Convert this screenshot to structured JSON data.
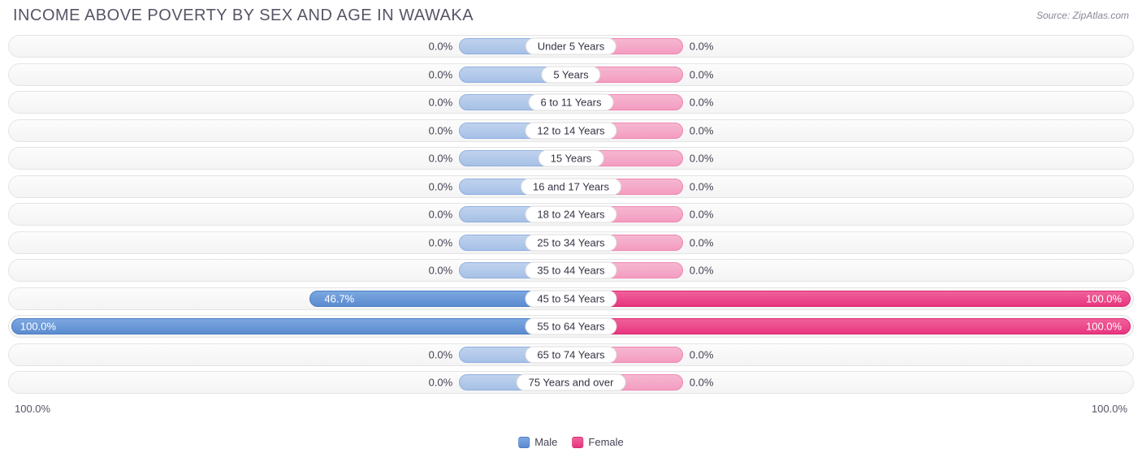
{
  "header": {
    "title": "INCOME ABOVE POVERTY BY SEX AND AGE IN WAWAKA",
    "source": "Source: ZipAtlas.com"
  },
  "chart": {
    "type": "diverging-bar",
    "track_bg_top": "#fcfcfc",
    "track_bg_bottom": "#f4f4f4",
    "track_border": "#e4e4e4",
    "male_full_color": "#5b8bd0",
    "male_faded_color": "#a6c0e6",
    "female_full_color": "#e8357e",
    "female_faded_color": "#f39dc1",
    "label_bg": "#ffffff",
    "label_border": "#dddddd",
    "text_color": "#444455",
    "min_bar_pct": 20,
    "axis": {
      "left": "100.0%",
      "right": "100.0%"
    },
    "rows": [
      {
        "category": "Under 5 Years",
        "male_pct": 0.0,
        "male_label": "0.0%",
        "female_pct": 0.0,
        "female_label": "0.0%"
      },
      {
        "category": "5 Years",
        "male_pct": 0.0,
        "male_label": "0.0%",
        "female_pct": 0.0,
        "female_label": "0.0%"
      },
      {
        "category": "6 to 11 Years",
        "male_pct": 0.0,
        "male_label": "0.0%",
        "female_pct": 0.0,
        "female_label": "0.0%"
      },
      {
        "category": "12 to 14 Years",
        "male_pct": 0.0,
        "male_label": "0.0%",
        "female_pct": 0.0,
        "female_label": "0.0%"
      },
      {
        "category": "15 Years",
        "male_pct": 0.0,
        "male_label": "0.0%",
        "female_pct": 0.0,
        "female_label": "0.0%"
      },
      {
        "category": "16 and 17 Years",
        "male_pct": 0.0,
        "male_label": "0.0%",
        "female_pct": 0.0,
        "female_label": "0.0%"
      },
      {
        "category": "18 to 24 Years",
        "male_pct": 0.0,
        "male_label": "0.0%",
        "female_pct": 0.0,
        "female_label": "0.0%"
      },
      {
        "category": "25 to 34 Years",
        "male_pct": 0.0,
        "male_label": "0.0%",
        "female_pct": 0.0,
        "female_label": "0.0%"
      },
      {
        "category": "35 to 44 Years",
        "male_pct": 0.0,
        "male_label": "0.0%",
        "female_pct": 0.0,
        "female_label": "0.0%"
      },
      {
        "category": "45 to 54 Years",
        "male_pct": 46.7,
        "male_label": "46.7%",
        "female_pct": 100.0,
        "female_label": "100.0%"
      },
      {
        "category": "55 to 64 Years",
        "male_pct": 100.0,
        "male_label": "100.0%",
        "female_pct": 100.0,
        "female_label": "100.0%"
      },
      {
        "category": "65 to 74 Years",
        "male_pct": 0.0,
        "male_label": "0.0%",
        "female_pct": 0.0,
        "female_label": "0.0%"
      },
      {
        "category": "75 Years and over",
        "male_pct": 0.0,
        "male_label": "0.0%",
        "female_pct": 0.0,
        "female_label": "0.0%"
      }
    ],
    "legend": {
      "male": "Male",
      "female": "Female"
    }
  }
}
